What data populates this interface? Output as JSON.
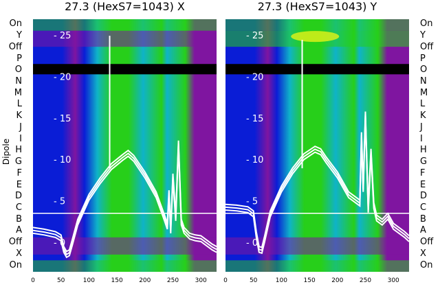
{
  "chart_data": [
    {
      "type": "heatmap",
      "title": "27.3 (HexS7=1043) X",
      "ylabel": "Dipole",
      "row_labels": [
        "On",
        "Y",
        "Off",
        "P",
        "O",
        "N",
        "M",
        "L",
        "K",
        "J",
        "I",
        "H",
        "G",
        "F",
        "E",
        "D",
        "C",
        "B",
        "A",
        "Off",
        "X",
        "On"
      ],
      "x_ticks": [
        0,
        50,
        100,
        150,
        200,
        250,
        300
      ],
      "xlim": [
        0,
        328
      ],
      "overlay_ticks": [
        25,
        20,
        15,
        10,
        5,
        0
      ],
      "overlay_ylim": [
        -3.5,
        27
      ],
      "line_series": {
        "x": [
          0,
          20,
          40,
          50,
          55,
          60,
          65,
          70,
          80,
          100,
          120,
          140,
          160,
          170,
          180,
          200,
          220,
          235,
          240,
          243,
          246,
          250,
          255,
          260,
          265,
          270,
          280,
          290,
          300,
          320,
          328
        ],
        "y": [
          1.5,
          1.3,
          1.0,
          0.6,
          -0.8,
          -1.4,
          -1.2,
          0.0,
          2.5,
          5.5,
          7.5,
          9.2,
          10.3,
          10.8,
          10.2,
          8.2,
          5.8,
          3.0,
          2.0,
          6.0,
          1.5,
          8.0,
          3.0,
          12.0,
          2.5,
          1.5,
          0.8,
          0.6,
          0.5,
          -0.5,
          -0.8
        ],
        "spike_x": 137,
        "spike_y": 25
      }
    },
    {
      "type": "heatmap",
      "title": "27.3 (HexS7=1043) Y",
      "row_labels": [
        "On",
        "Y",
        "Off",
        "P",
        "O",
        "N",
        "M",
        "L",
        "K",
        "J",
        "I",
        "H",
        "G",
        "F",
        "E",
        "D",
        "C",
        "B",
        "A",
        "Off",
        "X",
        "On"
      ],
      "x_ticks": [
        0,
        50,
        100,
        150,
        200,
        250,
        300
      ],
      "xlim": [
        0,
        328
      ],
      "overlay_ticks": [
        25,
        20,
        15,
        10,
        5,
        0
      ],
      "overlay_ylim": [
        -3.5,
        27
      ],
      "line_series": {
        "x": [
          0,
          20,
          40,
          50,
          55,
          60,
          65,
          70,
          80,
          100,
          120,
          140,
          160,
          170,
          180,
          200,
          220,
          240,
          243,
          246,
          250,
          255,
          260,
          265,
          270,
          280,
          290,
          300,
          320,
          328
        ],
        "y": [
          4.3,
          4.2,
          4.0,
          3.5,
          1.0,
          -0.8,
          -0.9,
          0.5,
          3.5,
          6.5,
          8.7,
          10.4,
          11.3,
          11.0,
          10.0,
          8.2,
          5.8,
          4.8,
          13.0,
          6.5,
          15.5,
          4.0,
          11.0,
          4.5,
          3.0,
          2.5,
          3.2,
          2.0,
          1.0,
          0.5
        ],
        "spike_x": 137,
        "spike_y": 24.5
      }
    }
  ],
  "colors": {
    "purple": "#7f15a0",
    "blue": "#0a1dd6",
    "cyan": "#0fb3c8",
    "green": "#27cf1a",
    "yellow": "#d9f01a",
    "black": "#000000",
    "line": "#ffffff"
  }
}
